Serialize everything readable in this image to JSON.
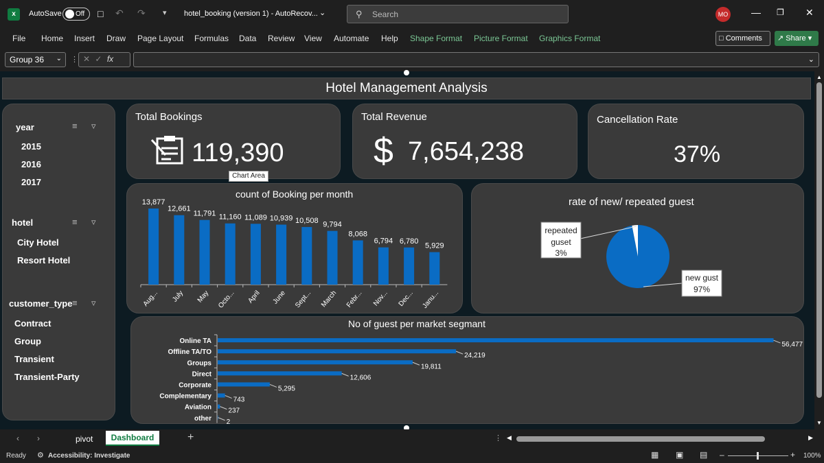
{
  "titlebar": {
    "autosave_label": "AutoSave",
    "autosave_state": "Off",
    "file_title": "hotel_booking (version 1)  -  AutoRecov...",
    "search_placeholder": "Search",
    "user_initials": "MO"
  },
  "menu": {
    "items": [
      "File",
      "Home",
      "Insert",
      "Draw",
      "Page Layout",
      "Formulas",
      "Data",
      "Review",
      "View",
      "Automate",
      "Help",
      "Shape Format",
      "Picture Format",
      "Graphics Format"
    ],
    "comments_label": "Comments",
    "share_label": "Share"
  },
  "formula": {
    "name_box": "Group 36",
    "fx": "fx"
  },
  "dashboard": {
    "title": "Hotel Management Analysis",
    "kpi": {
      "bookings_label": "Total Bookings",
      "bookings_value": "119,390",
      "revenue_label": "Total Revenue",
      "revenue_symbol": "$",
      "revenue_value": "7,654,238",
      "cancel_label": "Cancellation Rate",
      "cancel_value": "37%"
    },
    "tooltip": "Chart Area",
    "slicers": {
      "year": {
        "title": "year",
        "items": [
          "2015",
          "2016",
          "2017"
        ]
      },
      "hotel": {
        "title": "hotel",
        "items": [
          "City Hotel",
          "Resort Hotel"
        ]
      },
      "customer_type": {
        "title": "customer_type",
        "items": [
          "Contract",
          "Group",
          "Transient",
          "Transient-Party"
        ]
      }
    }
  },
  "colors": {
    "bar": "#0a6cc4",
    "panel": "#3a3a3a",
    "accent_green": "#7bc795"
  },
  "chart_data": [
    {
      "type": "bar",
      "title": "count of Booking per month",
      "categories": [
        "Aug...",
        "July",
        "May",
        "Octo...",
        "April",
        "June",
        "Sept...",
        "March",
        "Febr...",
        "Nov...",
        "Dec...",
        "Janu..."
      ],
      "values": [
        13877,
        12661,
        11791,
        11160,
        11089,
        10939,
        10508,
        9794,
        8068,
        6794,
        6780,
        5929
      ],
      "value_labels": [
        "13,877",
        "12,661",
        "11,791",
        "11,160",
        "11,089",
        "10,939",
        "10,508",
        "9,794",
        "8,068",
        "6,794",
        "6,780",
        "5,929"
      ],
      "ylim": [
        0,
        15000
      ]
    },
    {
      "type": "pie",
      "title": "rate of new/ repeated guest",
      "slices": [
        {
          "name": "new gust",
          "value": 97,
          "label": "97%"
        },
        {
          "name": "repeated guset",
          "value": 3,
          "label": "3%"
        }
      ]
    },
    {
      "type": "bar",
      "orientation": "horizontal",
      "title": "No of guest per market segmant",
      "categories": [
        "Online TA",
        "Offline TA/TO",
        "Groups",
        "Direct",
        "Corporate",
        "Complementary",
        "Aviation",
        "other"
      ],
      "values": [
        56477,
        24219,
        19811,
        12606,
        5295,
        743,
        237,
        2
      ],
      "value_labels": [
        "56,477",
        "24,219",
        "19,811",
        "12,606",
        "5,295",
        "743",
        "237",
        "2"
      ],
      "xlim": [
        0,
        60000
      ]
    }
  ],
  "tabs": {
    "items": [
      "pivot",
      "Dashboard"
    ],
    "active": "Dashboard"
  },
  "status": {
    "ready": "Ready",
    "accessibility": "Accessibility: Investigate",
    "zoom": "100%"
  }
}
